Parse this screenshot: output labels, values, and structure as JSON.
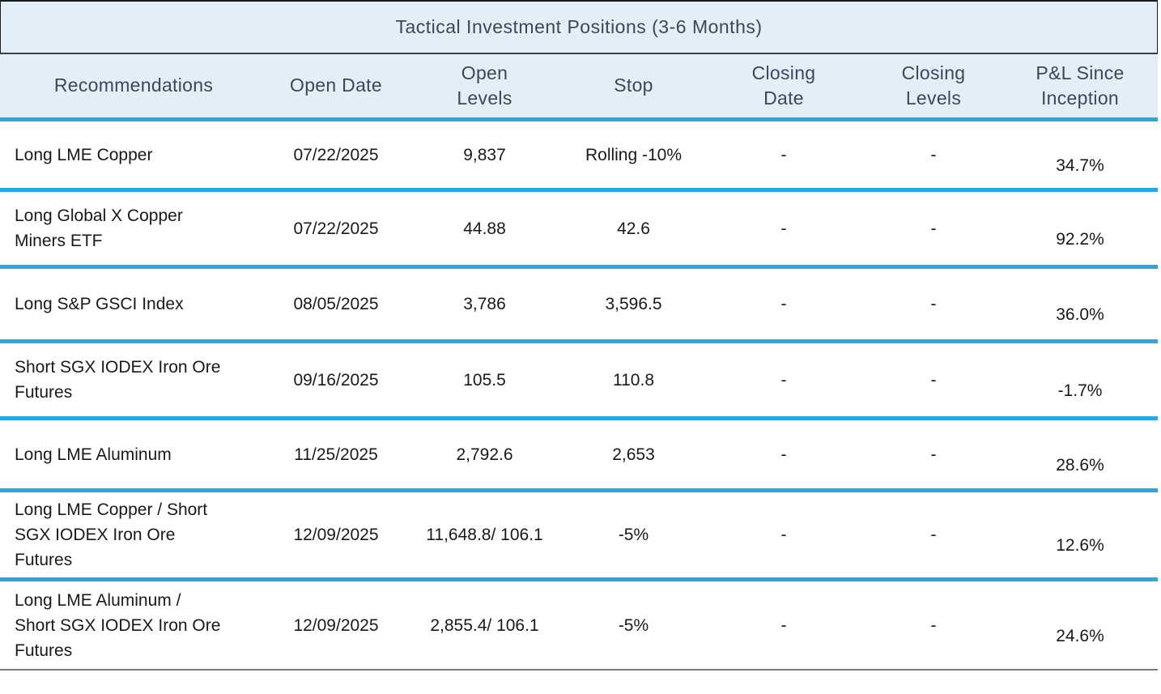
{
  "colors": {
    "header_background": "#e2eef8",
    "accent_separator": "#27a9df",
    "heading_text": "#3d4856",
    "body_text": "#191919",
    "title_border": "#1a1a1a",
    "title_bottom_separator": "#36424d",
    "table_bottom_border": "#7c7c7c"
  },
  "table": {
    "title": "Tactical Investment Positions (3-6 Months)",
    "columns": [
      "Recommendations",
      "Open Date",
      "Open Levels",
      "Stop",
      "Closing Date",
      "Closing Levels",
      "P&L Since Inception"
    ],
    "rows": [
      {
        "recommendation": "Long LME Copper",
        "open_date": "07/22/2025",
        "open_levels": "9,837",
        "stop": "Rolling -10%",
        "closing_date": "-",
        "closing_levels": "-",
        "pnl": "34.7%"
      },
      {
        "recommendation": "Long Global X Copper Miners ETF",
        "open_date": "07/22/2025",
        "open_levels": "44.88",
        "stop": "42.6",
        "closing_date": "-",
        "closing_levels": "-",
        "pnl": "92.2%"
      },
      {
        "recommendation": "Long S&P GSCI Index",
        "open_date": "08/05/2025",
        "open_levels": "3,786",
        "stop": "3,596.5",
        "closing_date": "-",
        "closing_levels": "-",
        "pnl": "36.0%"
      },
      {
        "recommendation": "Short SGX IODEX Iron Ore Futures",
        "open_date": "09/16/2025",
        "open_levels": "105.5",
        "stop": "110.8",
        "closing_date": "-",
        "closing_levels": "-",
        "pnl": "-1.7%"
      },
      {
        "recommendation": "Long LME Aluminum",
        "open_date": "11/25/2025",
        "open_levels": "2,792.6",
        "stop": "2,653",
        "closing_date": "-",
        "closing_levels": "-",
        "pnl": "28.6%"
      },
      {
        "recommendation": "Long LME Copper / Short SGX IODEX Iron Ore Futures",
        "open_date": "12/09/2025",
        "open_levels": "11,648.8/ 106.1",
        "stop": "-5%",
        "closing_date": "-",
        "closing_levels": "-",
        "pnl": "12.6%"
      },
      {
        "recommendation": "Long LME Aluminum / Short SGX IODEX Iron Ore Futures",
        "open_date": "12/09/2025",
        "open_levels": "2,855.4/ 106.1",
        "stop": "-5%",
        "closing_date": "-",
        "closing_levels": "-",
        "pnl": "24.6%"
      }
    ]
  }
}
